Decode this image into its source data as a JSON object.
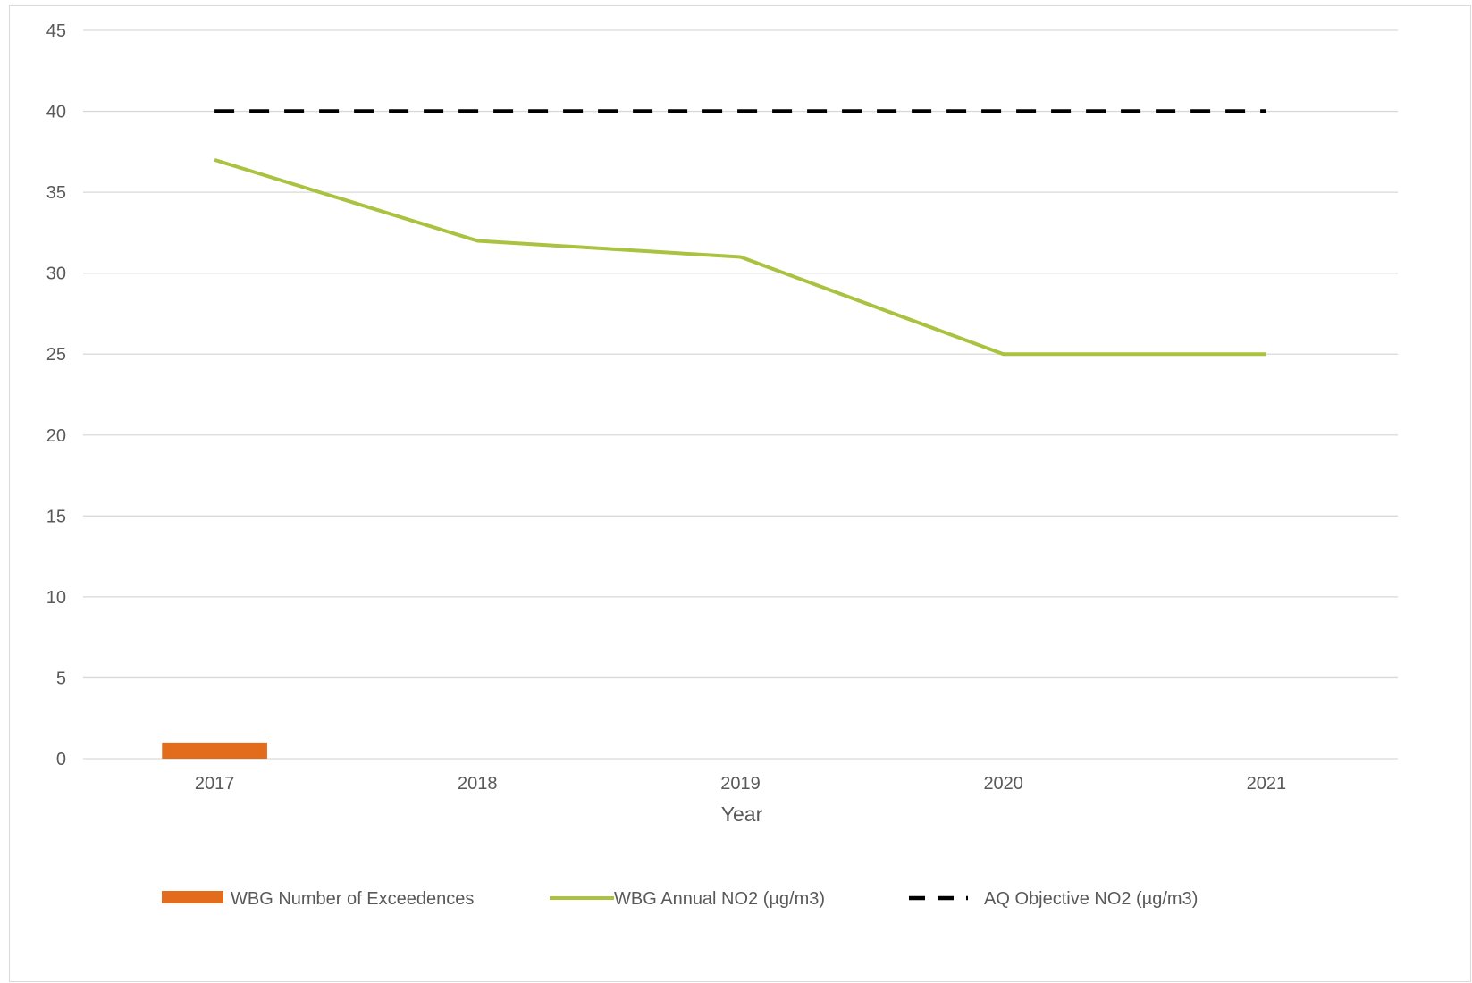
{
  "chart_data": {
    "type": "bar",
    "title": "",
    "xlabel": "Year",
    "ylabel": "",
    "categories": [
      "2017",
      "2018",
      "2019",
      "2020",
      "2021"
    ],
    "ylim": [
      0,
      45
    ],
    "yticks": [
      0,
      5,
      10,
      15,
      20,
      25,
      30,
      35,
      40,
      45
    ],
    "grid": true,
    "legend_position": "bottom",
    "series": [
      {
        "name": "WBG Number of Exceedences",
        "type": "bar",
        "color": "#E36C1C",
        "values": [
          1,
          0,
          0,
          0,
          0
        ]
      },
      {
        "name": "WBG Annual NO2 (µg/m3)",
        "type": "line",
        "color": "#A9C23F",
        "style": "solid",
        "values": [
          37,
          32,
          31,
          25,
          25
        ]
      },
      {
        "name": "AQ Objective NO2 (µg/m3)",
        "type": "line",
        "color": "#000000",
        "style": "dashed",
        "values": [
          40,
          40,
          40,
          40,
          40
        ]
      }
    ]
  }
}
